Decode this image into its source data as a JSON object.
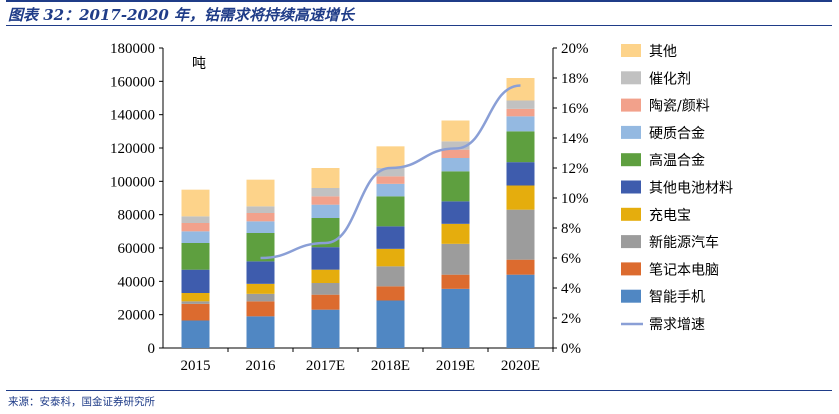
{
  "header": {
    "title": "图表 32：2017-2020 年，钴需求将持续高速增长"
  },
  "footer": {
    "source": "来源：安泰科，国金证券研究所"
  },
  "chart_data": {
    "type": "bar",
    "stacked": true,
    "unit_label": "吨",
    "categories": [
      "2015",
      "2016",
      "2017E",
      "2018E",
      "2019E",
      "2020E"
    ],
    "ylim": [
      0,
      180000
    ],
    "y_ticks": [
      "0",
      "20000",
      "40000",
      "60000",
      "80000",
      "100000",
      "120000",
      "140000",
      "160000",
      "180000"
    ],
    "y2lim": [
      0,
      20
    ],
    "y2_ticks": [
      "0%",
      "2%",
      "4%",
      "6%",
      "8%",
      "10%",
      "12%",
      "14%",
      "16%",
      "18%",
      "20%"
    ],
    "legend_position": "right",
    "series": [
      {
        "name": "智能手机",
        "color": "#5087c3",
        "values": [
          16500,
          19000,
          23000,
          28500,
          35500,
          44000
        ]
      },
      {
        "name": "笔记本电脑",
        "color": "#dc6b2f",
        "values": [
          10000,
          9000,
          9000,
          8500,
          8500,
          9000
        ]
      },
      {
        "name": "新能源汽车",
        "color": "#9c9c9c",
        "values": [
          1500,
          4500,
          7000,
          12000,
          18500,
          30000
        ]
      },
      {
        "name": "充电宝",
        "color": "#e5ad0d",
        "values": [
          5000,
          6000,
          8000,
          10500,
          12000,
          14500
        ]
      },
      {
        "name": "其他电池材料",
        "color": "#3e5cad",
        "values": [
          14000,
          13500,
          13500,
          13500,
          13500,
          14000
        ]
      },
      {
        "name": "高温合金",
        "color": "#5e9f3f",
        "values": [
          16000,
          17000,
          17500,
          18000,
          18000,
          18500
        ]
      },
      {
        "name": "硬质合金",
        "color": "#94b9e1",
        "values": [
          7000,
          7000,
          8000,
          7500,
          8000,
          9000
        ]
      },
      {
        "name": "陶瓷/颜料",
        "color": "#f2a18b",
        "values": [
          5000,
          5000,
          5000,
          4500,
          5000,
          4500
        ]
      },
      {
        "name": "催化剂",
        "color": "#c1c1c1",
        "values": [
          4000,
          4000,
          5000,
          5000,
          5000,
          5000
        ]
      },
      {
        "name": "其他",
        "color": "#fdd38a",
        "values": [
          16000,
          16000,
          12000,
          13000,
          12500,
          13500
        ]
      }
    ],
    "line": {
      "name": "需求增速",
      "color": "#8a9fd6",
      "axis": "secondary",
      "start_index": 1,
      "values": [
        null,
        6.0,
        7.0,
        12.0,
        13.3,
        17.5
      ]
    }
  }
}
